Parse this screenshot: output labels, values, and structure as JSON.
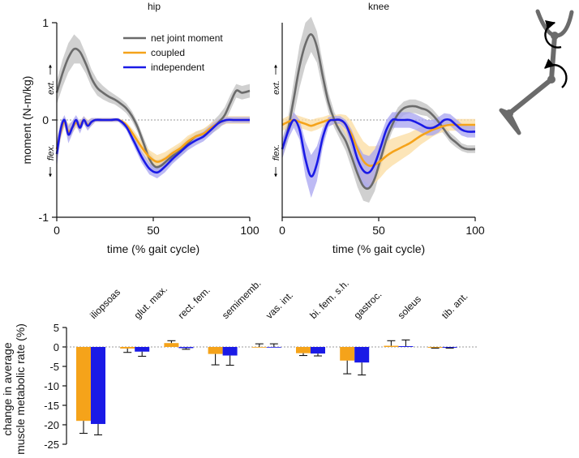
{
  "colors": {
    "net": "#6b6b6b",
    "net_band": "#c8c8c8",
    "coupled": "#f5a31a",
    "coupled_band": "#fbdca0",
    "independent": "#1a1ae6",
    "independent_band": "#a7a3f0"
  },
  "figure": {
    "y_axis_label": "moment (N-m/kg)",
    "ext_label": "ext.",
    "flex_label": "flex.",
    "diagram_name": "leg-schematic-icon"
  },
  "chart_data": [
    {
      "type": "line",
      "title": "hip",
      "xlabel": "time (% gait cycle)",
      "ylabel": "moment (N-m/kg)",
      "xlim": [
        0,
        100
      ],
      "ylim": [
        -1,
        1
      ],
      "xticks": [
        "0",
        "50",
        "100"
      ],
      "yticks": [
        "1",
        "0",
        "-1"
      ],
      "legend": {
        "placement": "top-left",
        "entries": [
          "net joint moment",
          "coupled",
          "independent"
        ]
      },
      "series": [
        {
          "name": "net joint moment",
          "x": [
            0,
            3,
            6,
            9,
            12,
            15,
            18,
            21,
            24,
            27,
            30,
            33,
            36,
            39,
            42,
            45,
            48,
            51,
            54,
            57,
            60,
            63,
            66,
            69,
            72,
            75,
            78,
            81,
            84,
            87,
            90,
            93,
            96,
            100
          ],
          "y": [
            0.28,
            0.48,
            0.64,
            0.73,
            0.7,
            0.58,
            0.43,
            0.33,
            0.28,
            0.24,
            0.21,
            0.17,
            0.12,
            0.04,
            -0.08,
            -0.24,
            -0.4,
            -0.48,
            -0.47,
            -0.42,
            -0.37,
            -0.33,
            -0.28,
            -0.22,
            -0.17,
            -0.15,
            -0.12,
            -0.07,
            -0.02,
            0.05,
            0.18,
            0.3,
            0.28,
            0.3
          ],
          "band": [
            0.12,
            0.14,
            0.15,
            0.15,
            0.12,
            0.1,
            0.09,
            0.08,
            0.07,
            0.06,
            0.05,
            0.05,
            0.05,
            0.05,
            0.05,
            0.06,
            0.07,
            0.07,
            0.07,
            0.06,
            0.06,
            0.06,
            0.06,
            0.05,
            0.05,
            0.05,
            0.05,
            0.06,
            0.07,
            0.08,
            0.08,
            0.07,
            0.07,
            0.07
          ]
        },
        {
          "name": "coupled",
          "x": [
            0,
            2,
            4,
            6,
            8,
            10,
            12,
            14,
            16,
            18,
            20,
            24,
            28,
            32,
            36,
            40,
            44,
            48,
            52,
            56,
            60,
            64,
            68,
            72,
            76,
            80,
            84,
            88,
            92,
            96,
            100
          ],
          "y": [
            -0.3,
            -0.12,
            -0.02,
            -0.12,
            -0.08,
            -0.03,
            -0.06,
            0.0,
            -0.05,
            -0.02,
            0.0,
            0.0,
            0.0,
            0.0,
            -0.05,
            -0.16,
            -0.28,
            -0.38,
            -0.43,
            -0.4,
            -0.34,
            -0.29,
            -0.22,
            -0.17,
            -0.14,
            -0.08,
            -0.03,
            0.0,
            0.0,
            0.0,
            0.0
          ],
          "band": [
            0.12,
            0.08,
            0.05,
            0.08,
            0.06,
            0.05,
            0.05,
            0.04,
            0.05,
            0.04,
            0.02,
            0.02,
            0.02,
            0.02,
            0.03,
            0.05,
            0.06,
            0.07,
            0.07,
            0.07,
            0.06,
            0.06,
            0.06,
            0.05,
            0.05,
            0.05,
            0.04,
            0.04,
            0.04,
            0.04,
            0.04
          ]
        },
        {
          "name": "independent",
          "x": [
            0,
            2,
            4,
            6,
            8,
            10,
            12,
            14,
            16,
            18,
            20,
            24,
            28,
            32,
            36,
            40,
            44,
            48,
            52,
            56,
            60,
            64,
            68,
            72,
            76,
            80,
            84,
            88,
            92,
            96,
            100
          ],
          "y": [
            -0.35,
            -0.1,
            0.0,
            -0.15,
            -0.08,
            0.0,
            -0.08,
            0.0,
            -0.06,
            -0.02,
            0.0,
            0.0,
            0.0,
            0.0,
            -0.07,
            -0.22,
            -0.38,
            -0.5,
            -0.54,
            -0.48,
            -0.4,
            -0.33,
            -0.26,
            -0.21,
            -0.17,
            -0.1,
            -0.03,
            0.0,
            0.0,
            0.0,
            0.0
          ],
          "band": [
            0.14,
            0.08,
            0.05,
            0.09,
            0.07,
            0.05,
            0.06,
            0.04,
            0.05,
            0.04,
            0.02,
            0.02,
            0.02,
            0.02,
            0.03,
            0.05,
            0.06,
            0.06,
            0.06,
            0.06,
            0.05,
            0.05,
            0.05,
            0.05,
            0.05,
            0.05,
            0.04,
            0.03,
            0.03,
            0.03,
            0.03
          ]
        }
      ]
    },
    {
      "type": "line",
      "title": "knee",
      "xlabel": "time (% gait cycle)",
      "ylabel": "",
      "xlim": [
        0,
        100
      ],
      "ylim": [
        -1,
        1
      ],
      "xticks": [
        "0",
        "50",
        "100"
      ],
      "yticks": [],
      "series": [
        {
          "name": "net joint moment",
          "x": [
            0,
            3,
            6,
            9,
            12,
            15,
            18,
            21,
            24,
            27,
            30,
            33,
            36,
            39,
            42,
            45,
            48,
            51,
            54,
            57,
            60,
            63,
            66,
            69,
            72,
            75,
            78,
            81,
            84,
            87,
            90,
            93,
            96,
            100
          ],
          "y": [
            -0.3,
            -0.1,
            0.22,
            0.55,
            0.78,
            0.88,
            0.75,
            0.45,
            0.18,
            0.0,
            -0.12,
            -0.22,
            -0.38,
            -0.55,
            -0.68,
            -0.7,
            -0.6,
            -0.4,
            -0.2,
            -0.05,
            0.06,
            0.12,
            0.14,
            0.14,
            0.12,
            0.1,
            0.05,
            -0.02,
            -0.1,
            -0.18,
            -0.23,
            -0.28,
            -0.3,
            -0.3
          ],
          "band": [
            0.1,
            0.12,
            0.18,
            0.22,
            0.22,
            0.18,
            0.16,
            0.14,
            0.1,
            0.08,
            0.08,
            0.1,
            0.12,
            0.14,
            0.15,
            0.15,
            0.13,
            0.1,
            0.08,
            0.07,
            0.07,
            0.07,
            0.07,
            0.07,
            0.07,
            0.06,
            0.06,
            0.06,
            0.05,
            0.05,
            0.05,
            0.04,
            0.04,
            0.04
          ]
        },
        {
          "name": "coupled",
          "x": [
            0,
            3,
            6,
            9,
            12,
            15,
            18,
            21,
            24,
            27,
            30,
            33,
            36,
            39,
            42,
            45,
            48,
            51,
            54,
            57,
            60,
            63,
            66,
            69,
            72,
            75,
            78,
            81,
            84,
            87,
            90,
            93,
            96,
            100
          ],
          "y": [
            -0.05,
            -0.02,
            0.0,
            -0.02,
            -0.04,
            -0.06,
            -0.04,
            -0.02,
            0.0,
            0.0,
            0.0,
            -0.05,
            -0.15,
            -0.3,
            -0.42,
            -0.47,
            -0.46,
            -0.42,
            -0.37,
            -0.33,
            -0.3,
            -0.27,
            -0.24,
            -0.2,
            -0.16,
            -0.13,
            -0.1,
            -0.08,
            -0.06,
            -0.05,
            -0.05,
            -0.05,
            -0.05,
            -0.05
          ],
          "band": [
            0.06,
            0.06,
            0.06,
            0.06,
            0.06,
            0.06,
            0.06,
            0.05,
            0.05,
            0.05,
            0.06,
            0.1,
            0.14,
            0.18,
            0.2,
            0.2,
            0.19,
            0.17,
            0.15,
            0.14,
            0.13,
            0.12,
            0.11,
            0.1,
            0.09,
            0.08,
            0.07,
            0.06,
            0.06,
            0.06,
            0.06,
            0.06,
            0.06,
            0.06
          ]
        },
        {
          "name": "independent",
          "x": [
            0,
            3,
            6,
            9,
            12,
            15,
            18,
            21,
            24,
            27,
            30,
            33,
            36,
            39,
            42,
            45,
            48,
            51,
            54,
            57,
            60,
            63,
            66,
            69,
            72,
            75,
            78,
            81,
            84,
            87,
            90,
            93,
            96,
            100
          ],
          "y": [
            -0.3,
            -0.12,
            0.0,
            -0.1,
            -0.4,
            -0.58,
            -0.45,
            -0.18,
            -0.02,
            0.0,
            0.0,
            -0.05,
            -0.2,
            -0.4,
            -0.52,
            -0.54,
            -0.45,
            -0.28,
            -0.1,
            0.0,
            0.0,
            0.0,
            0.0,
            -0.02,
            -0.05,
            -0.08,
            -0.08,
            -0.05,
            0.0,
            0.0,
            -0.05,
            -0.1,
            -0.12,
            -0.12
          ],
          "band": [
            0.1,
            0.08,
            0.08,
            0.1,
            0.18,
            0.22,
            0.18,
            0.1,
            0.05,
            0.04,
            0.04,
            0.05,
            0.1,
            0.15,
            0.17,
            0.17,
            0.15,
            0.12,
            0.1,
            0.08,
            0.08,
            0.08,
            0.08,
            0.08,
            0.08,
            0.08,
            0.08,
            0.08,
            0.07,
            0.06,
            0.06,
            0.06,
            0.06,
            0.06
          ]
        }
      ]
    },
    {
      "type": "bar",
      "ylabel": "change in average\nmuscle metabolic rate (%)",
      "ylim": [
        -25,
        5
      ],
      "yticks": [
        "5",
        "0",
        "-5",
        "-10",
        "-15",
        "-20",
        "-25"
      ],
      "categories": [
        "iliopsoas",
        "glut. max.",
        "rect. fem.",
        "semimemb.",
        "vas. int.",
        "bi. fem. s.h.",
        "gastroc.",
        "soleus",
        "tib. ant."
      ],
      "series": [
        {
          "name": "coupled",
          "values": [
            -19.0,
            -0.4,
            1.0,
            -1.8,
            0.0,
            -1.6,
            -3.5,
            0.3,
            -0.2
          ],
          "error": [
            3.2,
            1.0,
            0.6,
            2.8,
            0.8,
            0.6,
            3.4,
            1.3,
            0.1
          ]
        },
        {
          "name": "independent",
          "values": [
            -19.8,
            -1.2,
            -0.3,
            -2.2,
            0.0,
            -1.7,
            -4.0,
            0.2,
            -0.2
          ],
          "error": [
            2.8,
            1.2,
            0.3,
            2.5,
            0.8,
            0.6,
            3.2,
            1.6,
            0.1
          ]
        }
      ]
    }
  ]
}
